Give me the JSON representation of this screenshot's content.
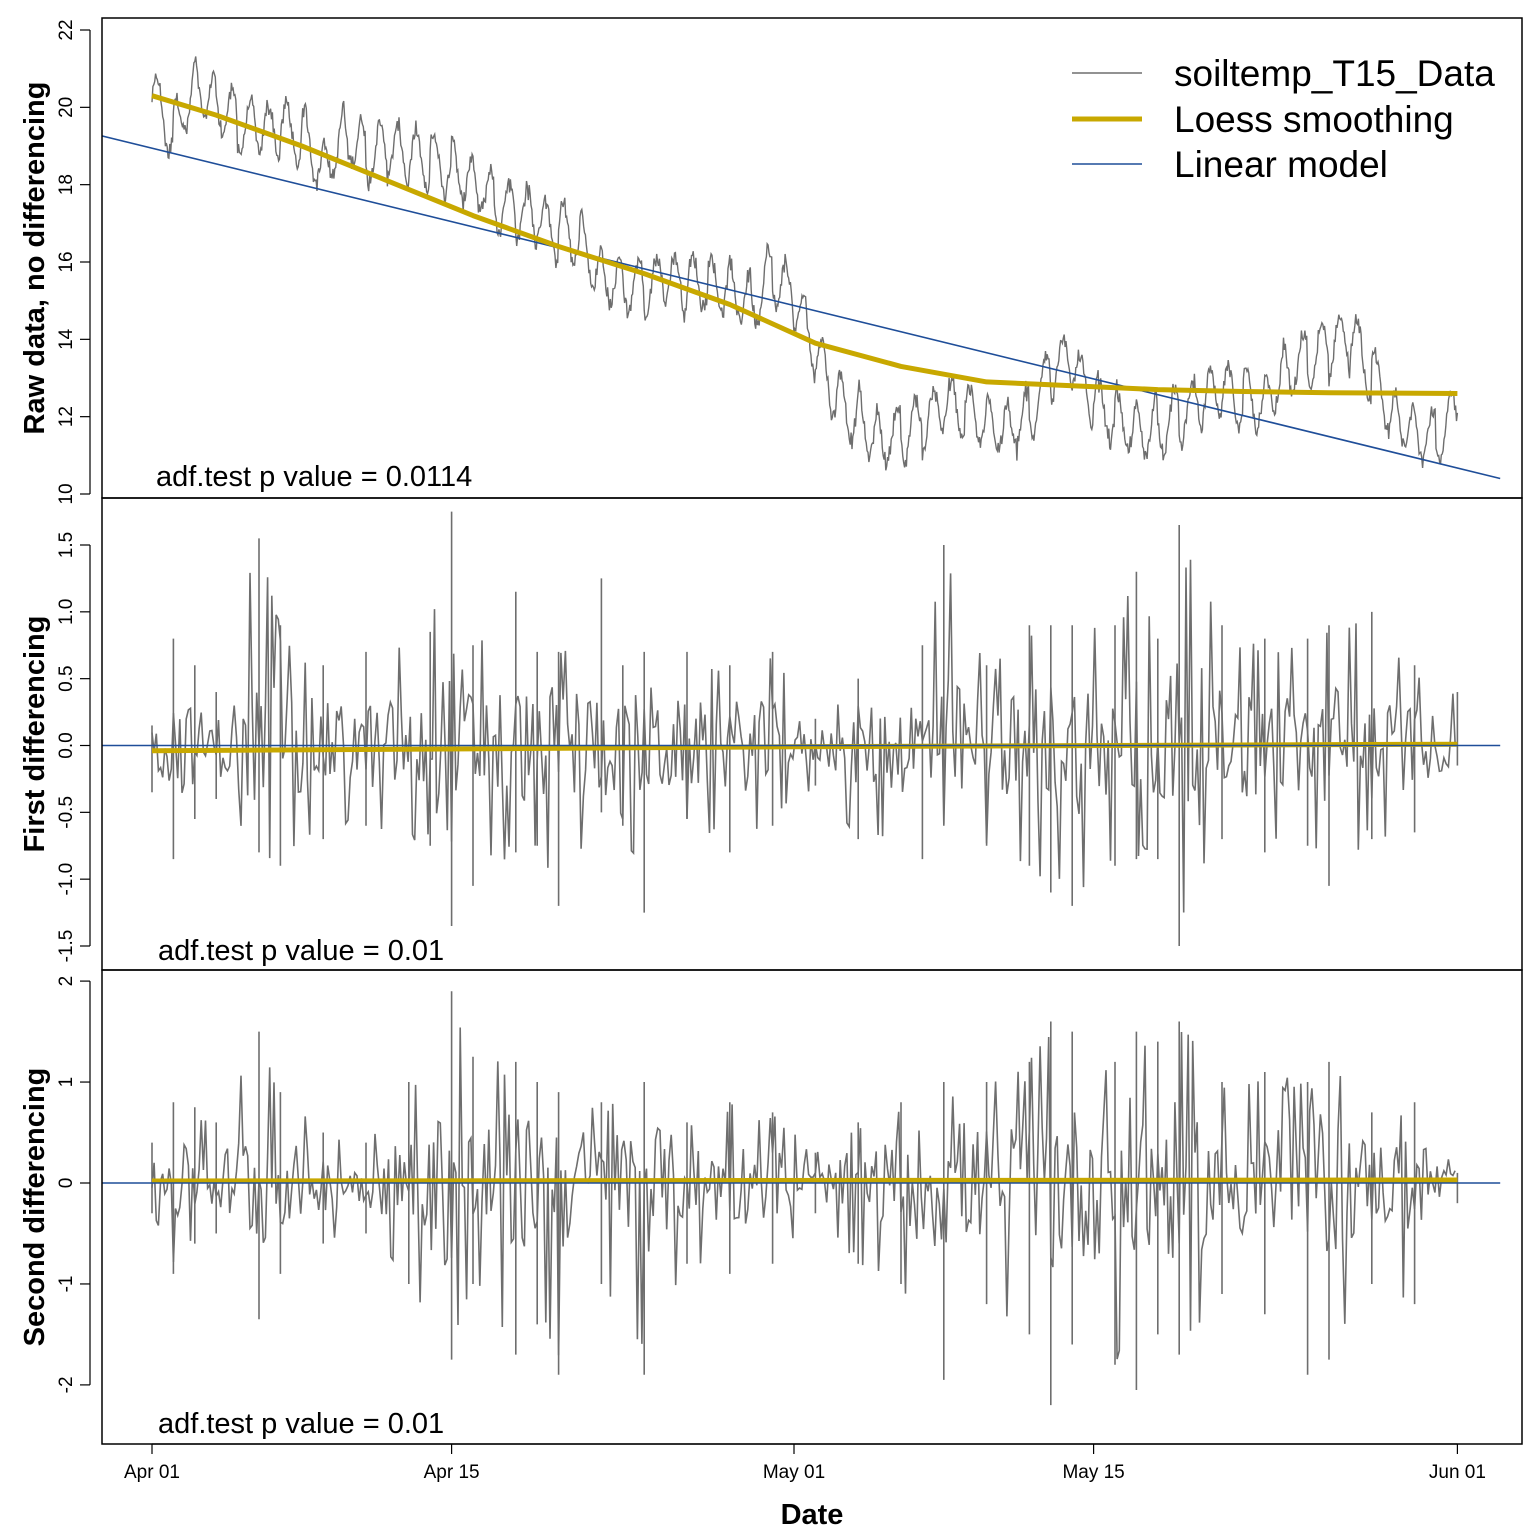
{
  "chart_data": [
    {
      "type": "line",
      "ylabel": "Raw data, no differencing",
      "ylim": [
        10,
        22
      ],
      "yticks": [
        10,
        12,
        14,
        16,
        18,
        20,
        22
      ],
      "annotation": "adf.test p value = 0.0114",
      "legend": {
        "placement": "top-right",
        "entries": [
          "soiltemp_T15_Data",
          "Loess smoothing",
          "Linear model"
        ]
      },
      "series": [
        {
          "name": "soiltemp_T15_Data",
          "color": "#6e6e6e",
          "sampled_points": [
            [
              "Apr 01",
              20.2
            ],
            [
              "Apr 02",
              19.4
            ],
            [
              "Apr 03",
              20.6
            ],
            [
              "Apr 04",
              20.2
            ],
            [
              "Apr 05",
              19.6
            ],
            [
              "Apr 06",
              19.3
            ],
            [
              "Apr 07",
              19.4
            ],
            [
              "Apr 08",
              19.3
            ],
            [
              "Apr 09",
              18.5
            ],
            [
              "Apr 10",
              19.4
            ],
            [
              "Apr 11",
              18.8
            ],
            [
              "Apr 12",
              18.9
            ],
            [
              "Apr 13",
              18.6
            ],
            [
              "Apr 14",
              18.6
            ],
            [
              "Apr 15",
              18.5
            ],
            [
              "Apr 16",
              18.2
            ],
            [
              "Apr 17",
              17.6
            ],
            [
              "Apr 18",
              17.3
            ],
            [
              "Apr 19",
              17.0
            ],
            [
              "Apr 20",
              16.8
            ],
            [
              "Apr 21",
              16.6
            ],
            [
              "Apr 22",
              15.7
            ],
            [
              "Apr 23",
              15.5
            ],
            [
              "Apr 24",
              15.3
            ],
            [
              "Apr 25",
              15.5
            ],
            [
              "Apr 26",
              15.4
            ],
            [
              "Apr 27",
              15.5
            ],
            [
              "Apr 28",
              15.4
            ],
            [
              "Apr 29",
              15.0
            ],
            [
              "Apr 30",
              15.7
            ],
            [
              "May 01",
              15.0
            ],
            [
              "May 02",
              13.6
            ],
            [
              "May 03",
              12.5
            ],
            [
              "May 04",
              12.0
            ],
            [
              "May 05",
              11.5
            ],
            [
              "May 06",
              11.6
            ],
            [
              "May 07",
              11.8
            ],
            [
              "May 08",
              12.2
            ],
            [
              "May 09",
              12.1
            ],
            [
              "May 10",
              11.9
            ],
            [
              "May 11",
              11.8
            ],
            [
              "May 12",
              12.0
            ],
            [
              "May 13",
              13.3
            ],
            [
              "May 14",
              13.3
            ],
            [
              "May 15",
              12.3
            ],
            [
              "May 16",
              12.0
            ],
            [
              "May 17",
              11.7
            ],
            [
              "May 18",
              11.8
            ],
            [
              "May 19",
              12.0
            ],
            [
              "May 20",
              12.3
            ],
            [
              "May 21",
              12.6
            ],
            [
              "May 22",
              12.5
            ],
            [
              "May 23",
              12.5
            ],
            [
              "May 24",
              13.3
            ],
            [
              "May 25",
              13.4
            ],
            [
              "May 26",
              13.8
            ],
            [
              "May 27",
              14.0
            ],
            [
              "May 28",
              13.1
            ],
            [
              "May 29",
              12.0
            ],
            [
              "May 30",
              11.8
            ],
            [
              "May 31",
              11.4
            ],
            [
              "Jun 01",
              12.1
            ]
          ]
        },
        {
          "name": "Loess smoothing",
          "color": "#c8a800",
          "points": [
            [
              "Apr 01",
              20.3
            ],
            [
              "Apr 04",
              19.8
            ],
            [
              "Apr 08",
              19.0
            ],
            [
              "Apr 12",
              18.1
            ],
            [
              "Apr 16",
              17.2
            ],
            [
              "Apr 20",
              16.4
            ],
            [
              "Apr 24",
              15.7
            ],
            [
              "Apr 28",
              14.9
            ],
            [
              "May 02",
              13.9
            ],
            [
              "May 06",
              13.3
            ],
            [
              "May 10",
              12.9
            ],
            [
              "May 14",
              12.8
            ],
            [
              "May 18",
              12.7
            ],
            [
              "May 22",
              12.65
            ],
            [
              "May 26",
              12.62
            ],
            [
              "Jun 01",
              12.6
            ]
          ]
        },
        {
          "name": "Linear model",
          "color": "#1f4e99",
          "points": [
            [
              "Mar 29",
              19.35
            ],
            [
              "Jun 03",
              10.4
            ]
          ]
        }
      ]
    },
    {
      "type": "line",
      "ylabel": "First differencing",
      "ylim": [
        -1.5,
        1.5
      ],
      "yticks": [
        -1.5,
        -1.0,
        -0.5,
        0.0,
        0.5,
        1.0,
        1.5
      ],
      "annotation": "adf.test p value = 0.01",
      "series": [
        {
          "color": "#6e6e6e",
          "spikes": [
            [
              "Apr 01",
              0.15,
              -0.35
            ],
            [
              "Apr 02",
              0.8,
              -0.85
            ],
            [
              "Apr 03",
              0.6,
              -0.55
            ],
            [
              "Apr 04",
              0.4,
              -0.4
            ],
            [
              "Apr 06",
              1.55,
              -0.8
            ],
            [
              "Apr 07",
              0.9,
              -0.9
            ],
            [
              "Apr 09",
              0.6,
              -0.7
            ],
            [
              "Apr 11",
              0.7,
              -0.6
            ],
            [
              "Apr 14",
              0.85,
              -0.75
            ],
            [
              "Apr 15",
              1.75,
              -1.35
            ],
            [
              "Apr 16",
              0.75,
              -1.05
            ],
            [
              "Apr 18",
              1.15,
              -0.8
            ],
            [
              "Apr 19",
              0.7,
              -0.75
            ],
            [
              "Apr 20",
              0.7,
              -1.2
            ],
            [
              "Apr 22",
              1.25,
              -0.5
            ],
            [
              "Apr 23",
              0.6,
              -0.6
            ],
            [
              "Apr 24",
              0.7,
              -1.25
            ],
            [
              "Apr 26",
              0.7,
              -0.55
            ],
            [
              "Apr 28",
              0.6,
              -0.8
            ],
            [
              "Apr 30",
              0.7,
              -0.6
            ],
            [
              "May 02",
              0.2,
              -0.3
            ],
            [
              "May 04",
              0.5,
              -0.7
            ],
            [
              "May 07",
              0.75,
              -0.85
            ],
            [
              "May 08",
              1.5,
              -0.6
            ],
            [
              "May 10",
              0.6,
              -0.75
            ],
            [
              "May 12",
              0.9,
              -0.9
            ],
            [
              "May 13",
              0.9,
              -1.1
            ],
            [
              "May 14",
              0.9,
              -1.2
            ],
            [
              "May 16",
              0.9,
              -0.9
            ],
            [
              "May 17",
              1.3,
              -0.85
            ],
            [
              "May 18",
              0.8,
              -0.85
            ],
            [
              "May 19",
              1.65,
              -1.5
            ],
            [
              "May 21",
              0.9,
              -0.7
            ],
            [
              "May 23",
              0.8,
              -0.8
            ],
            [
              "May 25",
              0.8,
              -0.75
            ],
            [
              "May 26",
              0.9,
              -1.05
            ],
            [
              "May 28",
              1.0,
              -0.7
            ],
            [
              "May 30",
              0.6,
              -0.65
            ],
            [
              "Jun 01",
              0.4,
              -0.15
            ]
          ]
        },
        {
          "name": "Loess smoothing",
          "color": "#c8a800",
          "points": [
            [
              "Apr 01",
              -0.04
            ],
            [
              "May 01",
              -0.01
            ],
            [
              "Jun 01",
              0.01
            ]
          ]
        },
        {
          "name": "Linear model",
          "color": "#1f4e99",
          "points": [
            [
              "Mar 29",
              0.0
            ],
            [
              "Jun 03",
              0.0
            ]
          ]
        }
      ]
    },
    {
      "type": "line",
      "ylabel": "Second differencing",
      "ylim": [
        -2.1,
        2.1
      ],
      "yticks": [
        -2,
        -1,
        0,
        1,
        2
      ],
      "annotation": "adf.test p value = 0.01",
      "xlabel": "Date",
      "xticks": [
        "Apr 01",
        "Apr 15",
        "May 01",
        "May 15",
        "Jun 01"
      ],
      "series": [
        {
          "color": "#6e6e6e",
          "spikes": [
            [
              "Apr 01",
              0.4,
              -0.3
            ],
            [
              "Apr 02",
              0.8,
              -0.9
            ],
            [
              "Apr 03",
              0.75,
              -0.6
            ],
            [
              "Apr 04",
              0.6,
              -0.5
            ],
            [
              "Apr 06",
              1.5,
              -1.35
            ],
            [
              "Apr 07",
              0.9,
              -0.9
            ],
            [
              "Apr 09",
              0.5,
              -0.6
            ],
            [
              "Apr 11",
              0.4,
              -0.5
            ],
            [
              "Apr 13",
              1.0,
              -1.0
            ],
            [
              "Apr 15",
              1.9,
              -1.75
            ],
            [
              "Apr 16",
              1.25,
              -1.0
            ],
            [
              "Apr 18",
              1.2,
              -1.7
            ],
            [
              "Apr 19",
              1.0,
              -1.4
            ],
            [
              "Apr 20",
              0.9,
              -1.9
            ],
            [
              "Apr 22",
              0.8,
              -1.0
            ],
            [
              "Apr 24",
              1.0,
              -1.9
            ],
            [
              "Apr 26",
              0.6,
              -0.8
            ],
            [
              "Apr 28",
              0.8,
              -0.9
            ],
            [
              "Apr 30",
              0.7,
              -0.8
            ],
            [
              "May 02",
              0.3,
              -0.3
            ],
            [
              "May 04",
              0.6,
              -0.8
            ],
            [
              "May 06",
              0.8,
              -1.0
            ],
            [
              "May 08",
              1.0,
              -1.95
            ],
            [
              "May 10",
              1.0,
              -1.2
            ],
            [
              "May 12",
              1.2,
              -1.5
            ],
            [
              "May 13",
              1.6,
              -2.2
            ],
            [
              "May 14",
              1.5,
              -1.6
            ],
            [
              "May 16",
              1.2,
              -1.8
            ],
            [
              "May 17",
              1.5,
              -2.05
            ],
            [
              "May 18",
              1.4,
              -1.5
            ],
            [
              "May 19",
              1.6,
              -1.7
            ],
            [
              "May 21",
              1.0,
              -1.1
            ],
            [
              "May 23",
              1.1,
              -1.3
            ],
            [
              "May 25",
              1.0,
              -1.9
            ],
            [
              "May 26",
              1.2,
              -1.75
            ],
            [
              "May 28",
              0.7,
              -1.0
            ],
            [
              "May 30",
              0.8,
              -1.2
            ],
            [
              "Jun 01",
              0.1,
              -0.2
            ]
          ]
        },
        {
          "name": "Loess smoothing",
          "color": "#c8a800",
          "points": [
            [
              "Apr 01",
              0.02
            ],
            [
              "Jun 01",
              0.03
            ]
          ]
        },
        {
          "name": "Linear model",
          "color": "#1f4e99",
          "points": [
            [
              "Mar 29",
              0.0
            ],
            [
              "Jun 03",
              0.0
            ]
          ]
        }
      ]
    }
  ]
}
